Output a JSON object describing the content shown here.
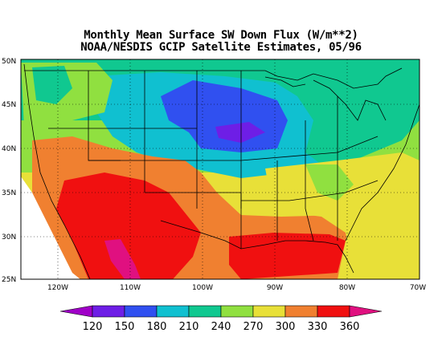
{
  "title": "Monthly Mean Surface SW Down Flux (W/m**2)",
  "subtitle": "NOAA/NESDIS GCIP Satellite Estimates, 05/96",
  "map": {
    "lon_range": [
      -125,
      -70
    ],
    "lat_range": [
      25,
      50
    ],
    "lon_ticks": [
      "120W",
      "110W",
      "100W",
      "90W",
      "80W",
      "70W"
    ],
    "lat_ticks": [
      "50N",
      "45N",
      "40N",
      "35N",
      "30N",
      "25N"
    ]
  },
  "colorbar": {
    "labels": [
      "120",
      "150",
      "180",
      "210",
      "240",
      "270",
      "300",
      "330",
      "360"
    ],
    "colors": [
      "#a000c8",
      "#6e1ee6",
      "#3050f0",
      "#10c0d0",
      "#10c890",
      "#90e040",
      "#e8e038",
      "#f08030",
      "#f01010",
      "#e01080"
    ]
  },
  "regions": [
    {
      "name": "pacific-northwest",
      "flux": "240-270"
    },
    {
      "name": "northern-rockies",
      "flux": "210-240"
    },
    {
      "name": "central-plains-minimum",
      "flux": "150-180"
    },
    {
      "name": "great-lakes",
      "flux": "210-240"
    },
    {
      "name": "southwest",
      "flux": "330-360"
    },
    {
      "name": "texas-gulf",
      "flux": "330-360"
    },
    {
      "name": "southeast",
      "flux": "270-300"
    }
  ]
}
